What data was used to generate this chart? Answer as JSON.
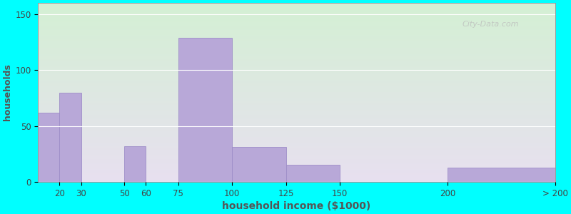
{
  "xlabel": "household income ($1000)",
  "ylabel": "households",
  "background_color": "#00FFFF",
  "grad_top_color": "#d4f0d4",
  "grad_bottom_color": "#e8e0f0",
  "bar_color": "#b8a8d8",
  "bar_edge_color": "#9e8ec8",
  "title_fontsize": 13,
  "subtitle_fontsize": 10,
  "xlabel_fontsize": 10,
  "ylabel_fontsize": 9,
  "bar_heights": [
    62,
    80,
    0,
    32,
    0,
    129,
    31,
    15,
    0,
    13
  ],
  "bar_lefts": [
    10,
    20,
    30,
    50,
    60,
    75,
    100,
    125,
    150,
    200
  ],
  "bar_widths": [
    10,
    10,
    20,
    10,
    15,
    25,
    25,
    25,
    50,
    50
  ],
  "tick_positions": [
    20,
    30,
    50,
    60,
    75,
    100,
    125,
    150,
    200,
    250
  ],
  "tick_labels": [
    "20",
    "30",
    "50",
    "60",
    "75",
    "100",
    "125",
    "150",
    "200",
    "> 200"
  ],
  "xlim": [
    10,
    250
  ],
  "ylim": [
    0,
    160
  ],
  "yticks": [
    0,
    50,
    100,
    150
  ],
  "watermark": "City-Data.com"
}
